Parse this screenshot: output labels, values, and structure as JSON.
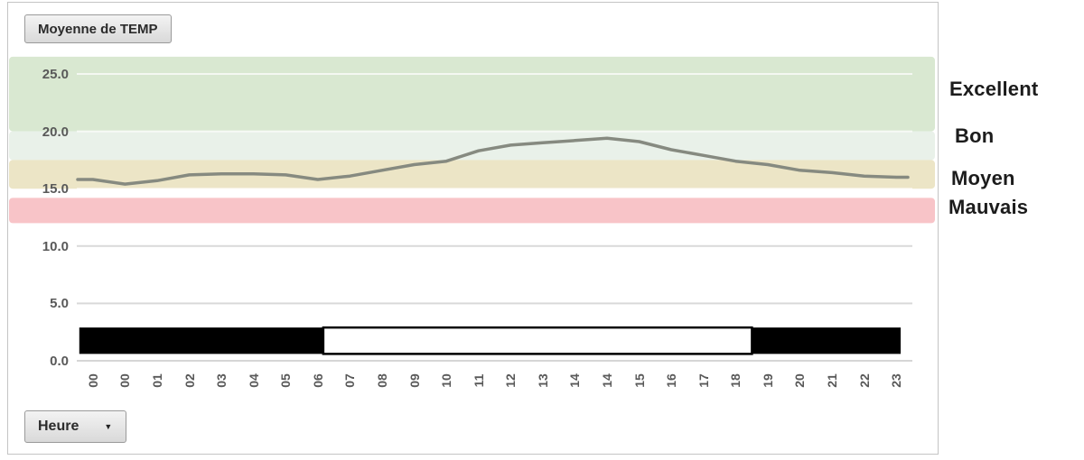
{
  "pivot_buttons": {
    "value_field_label": "Moyenne de TEMP",
    "axis_field_label": "Heure",
    "dropdown_icon": "▼"
  },
  "chart_data": {
    "type": "line",
    "title": "Moyenne de TEMP",
    "x_axis_field": "Heure",
    "x_tick_labels": [
      "00",
      "00",
      "01",
      "02",
      "03",
      "04",
      "05",
      "06",
      "07",
      "08",
      "09",
      "10",
      "11",
      "12",
      "13",
      "14",
      "14",
      "15",
      "16",
      "17",
      "18",
      "19",
      "20",
      "21",
      "22",
      "23"
    ],
    "series": [
      {
        "name": "Moyenne de TEMP",
        "color": "#868a80",
        "values": [
          15.8,
          15.4,
          15.7,
          16.2,
          16.3,
          16.3,
          16.2,
          15.8,
          16.1,
          16.6,
          17.1,
          17.4,
          18.3,
          18.8,
          19.0,
          19.2,
          19.4,
          19.1,
          18.4,
          17.9,
          17.4,
          17.1,
          16.6,
          16.4,
          16.1,
          16.0
        ]
      }
    ],
    "ylim": [
      0,
      26.5
    ],
    "ytick_values": [
      0,
      5,
      10,
      15,
      20,
      25
    ],
    "ytick_labels": [
      "0.0",
      "5.0",
      "10.0",
      "15.0",
      "20.0",
      "25.0"
    ],
    "grid": "horizontal",
    "legend_position": "right-band-labels",
    "axis_text_color": "#595959",
    "band_label_color": "#1c1c1c",
    "grid_color": "#d9d9d9",
    "grid_color_over_bands": "rgba(255,255,255,0.7)",
    "axis_line_color": "#c9c9c9",
    "bands": [
      {
        "label": "Excellent",
        "color": "#d9e8d1",
        "from": 20.0,
        "to": 26.5
      },
      {
        "label": "Bon",
        "color": "#e9f1e9",
        "from": 17.5,
        "to": 20.0
      },
      {
        "label": "Moyen",
        "color": "#ece5c6",
        "from": 15.0,
        "to": 17.5
      },
      {
        "label": "Mauvais",
        "color": "#f8c4c8",
        "from": 12.0,
        "to": 14.2
      }
    ],
    "overlay_bar": {
      "name": "day-night-indicator",
      "value_range": [
        0.6,
        2.9
      ],
      "segments": [
        {
          "from_frac": 0.003,
          "to_frac": 0.295,
          "fill": "#000000"
        },
        {
          "from_frac": 0.295,
          "to_frac": 0.808,
          "fill": "#ffffff",
          "stroke": "#000000"
        },
        {
          "from_frac": 0.808,
          "to_frac": 0.986,
          "fill": "#000000"
        }
      ]
    }
  }
}
